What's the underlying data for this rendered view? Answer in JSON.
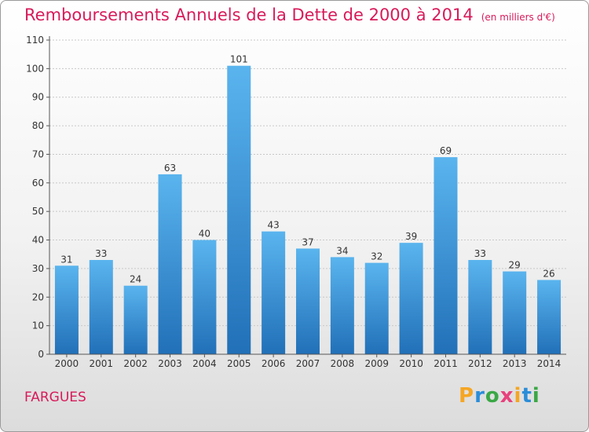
{
  "header": {
    "title": "Remboursements Annuels de la Dette de 2000 à 2014",
    "unit": "(en milliers d'€)"
  },
  "footer": {
    "commune": "FARGUES",
    "logo": {
      "letters": [
        "P",
        "r",
        "o",
        "x",
        "i",
        "t",
        "i"
      ],
      "colors": [
        "#f5a623",
        "#2b8dd8",
        "#3aa845",
        "#e8407c",
        "#f5a623",
        "#2b8dd8",
        "#3aa845"
      ]
    }
  },
  "colors": {
    "bar_top": "#5ab4ee",
    "bar_bottom": "#2170b8",
    "accent": "#d81a5a",
    "grid": "#c8c8c8"
  },
  "chart_data": {
    "type": "bar",
    "title": "Remboursements Annuels de la Dette de 2000 à 2014",
    "xlabel": "",
    "ylabel": "",
    "categories": [
      "2000",
      "2001",
      "2002",
      "2003",
      "2004",
      "2005",
      "2006",
      "2007",
      "2008",
      "2009",
      "2010",
      "2011",
      "2012",
      "2013",
      "2014"
    ],
    "values": [
      31,
      33,
      24,
      63,
      40,
      101,
      43,
      37,
      34,
      32,
      39,
      69,
      33,
      29,
      26
    ],
    "ylim": [
      0,
      110
    ],
    "yticks": [
      0,
      10,
      20,
      30,
      40,
      50,
      60,
      70,
      80,
      90,
      100,
      110
    ],
    "grid": true,
    "data_labels": true
  }
}
